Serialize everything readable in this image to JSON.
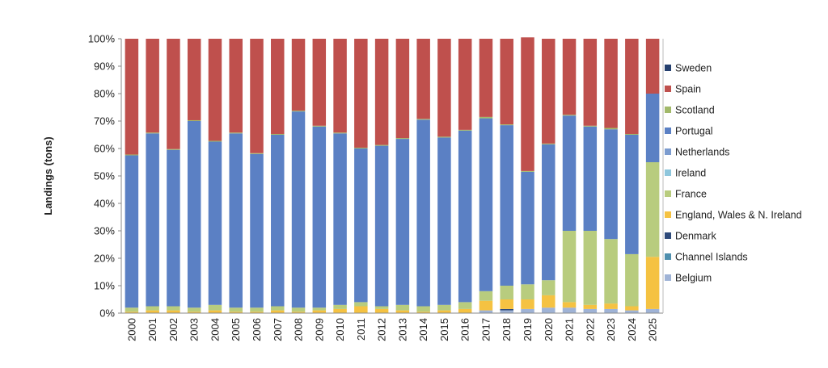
{
  "chart_data": {
    "type": "bar",
    "stacked": true,
    "normalized": true,
    "title": "",
    "xlabel": "",
    "ylabel": "Landings (tons)",
    "ylim": [
      0,
      100
    ],
    "yticks": [
      "0%",
      "10%",
      "20%",
      "30%",
      "40%",
      "50%",
      "60%",
      "70%",
      "80%",
      "90%",
      "100%"
    ],
    "legend_position": "right",
    "grid": false,
    "categories": [
      "2000",
      "2001",
      "2002",
      "2003",
      "2004",
      "2005",
      "2006",
      "2007",
      "2008",
      "2009",
      "2010",
      "2011",
      "2012",
      "2013",
      "2014",
      "2015",
      "2016",
      "2017",
      "2018",
      "2019",
      "2020",
      "2021",
      "2022",
      "2023",
      "2024",
      "2025"
    ],
    "series": [
      {
        "name": "Belgium",
        "color": "#9fb3d6",
        "values": [
          0,
          0,
          0,
          0,
          0,
          0,
          0,
          0,
          0,
          0,
          0,
          0,
          0,
          0,
          0,
          0,
          0,
          1,
          1,
          1.5,
          2,
          2,
          1.5,
          1.5,
          1,
          1.5
        ]
      },
      {
        "name": "Channel Islands",
        "color": "#4f8fae",
        "values": [
          0,
          0,
          0,
          0,
          0,
          0,
          0,
          0,
          0,
          0,
          0,
          0,
          0,
          0,
          0,
          0,
          0,
          0,
          0,
          0,
          0,
          0,
          0,
          0,
          0,
          0
        ]
      },
      {
        "name": "Denmark",
        "color": "#2e4a7a",
        "values": [
          0,
          0,
          0,
          0,
          0,
          0,
          0,
          0,
          0,
          0,
          0,
          0,
          0,
          0,
          0,
          0,
          0,
          0,
          0.5,
          0,
          0,
          0,
          0,
          0,
          0,
          0
        ]
      },
      {
        "name": "England, Wales & N. Ireland",
        "color": "#f5c242",
        "values": [
          0.5,
          1,
          1,
          0.5,
          1,
          0.5,
          0.5,
          1,
          0.5,
          1,
          1.5,
          2.5,
          1.5,
          1,
          0.5,
          1,
          1.5,
          3.5,
          3.5,
          3.5,
          4.5,
          2,
          1.5,
          2,
          1.5,
          19
        ]
      },
      {
        "name": "France",
        "color": "#b8cc7e",
        "values": [
          1.5,
          1.5,
          1.5,
          1.5,
          2,
          1.5,
          1.5,
          1.5,
          1.5,
          1,
          1.5,
          1.5,
          1,
          2,
          2,
          2,
          2.5,
          3.5,
          5,
          5.5,
          5.5,
          26,
          27,
          23.5,
          19,
          34.5
        ]
      },
      {
        "name": "Ireland",
        "color": "#8ec6dc",
        "values": [
          0,
          0,
          0,
          0,
          0,
          0,
          0,
          0,
          0,
          0,
          0,
          0,
          0,
          0,
          0,
          0,
          0,
          0,
          0,
          0,
          0,
          0,
          0,
          0,
          0,
          0
        ]
      },
      {
        "name": "Netherlands",
        "color": "#7c9ccf",
        "values": [
          0,
          0,
          0,
          0,
          0,
          0,
          0,
          0,
          0,
          0,
          0,
          0,
          0,
          0,
          0,
          0,
          0,
          0,
          0,
          0,
          0,
          0,
          0,
          0,
          0,
          0
        ]
      },
      {
        "name": "Portugal",
        "color": "#5b80c4",
        "values": [
          55.5,
          63,
          57,
          68,
          59.5,
          63.5,
          56,
          62.5,
          71.5,
          66,
          62.5,
          56,
          58.5,
          60.5,
          68,
          61,
          62.5,
          63,
          58.5,
          41,
          49.5,
          42,
          38,
          40,
          43.5,
          25
        ]
      },
      {
        "name": "Scotland",
        "color": "#a2b96a",
        "values": [
          0.3,
          0.3,
          0.3,
          0.3,
          0.3,
          0.3,
          0.3,
          0.3,
          0.3,
          0.3,
          0.3,
          0.3,
          0.3,
          0.3,
          0.3,
          0.3,
          0.3,
          0.5,
          0.3,
          0.3,
          0.3,
          0.3,
          0.3,
          0.5,
          0.3,
          0
        ]
      },
      {
        "name": "Spain",
        "color": "#bf504d",
        "values": [
          42.2,
          34.2,
          40.2,
          29.7,
          37.2,
          34.2,
          41.7,
          34.7,
          26.2,
          31.7,
          34.2,
          39.7,
          38.7,
          36.2,
          29.2,
          35.7,
          33.2,
          28.5,
          31.2,
          48.7,
          38.2,
          27.7,
          31.7,
          32.5,
          34.7,
          20
        ]
      },
      {
        "name": "Sweden",
        "color": "#243f6e",
        "values": [
          0,
          0,
          0,
          0,
          0,
          0,
          0,
          0,
          0,
          0,
          0,
          0,
          0,
          0,
          0,
          0,
          0,
          0,
          0,
          0,
          0,
          0,
          0,
          0,
          0,
          0
        ]
      }
    ]
  }
}
